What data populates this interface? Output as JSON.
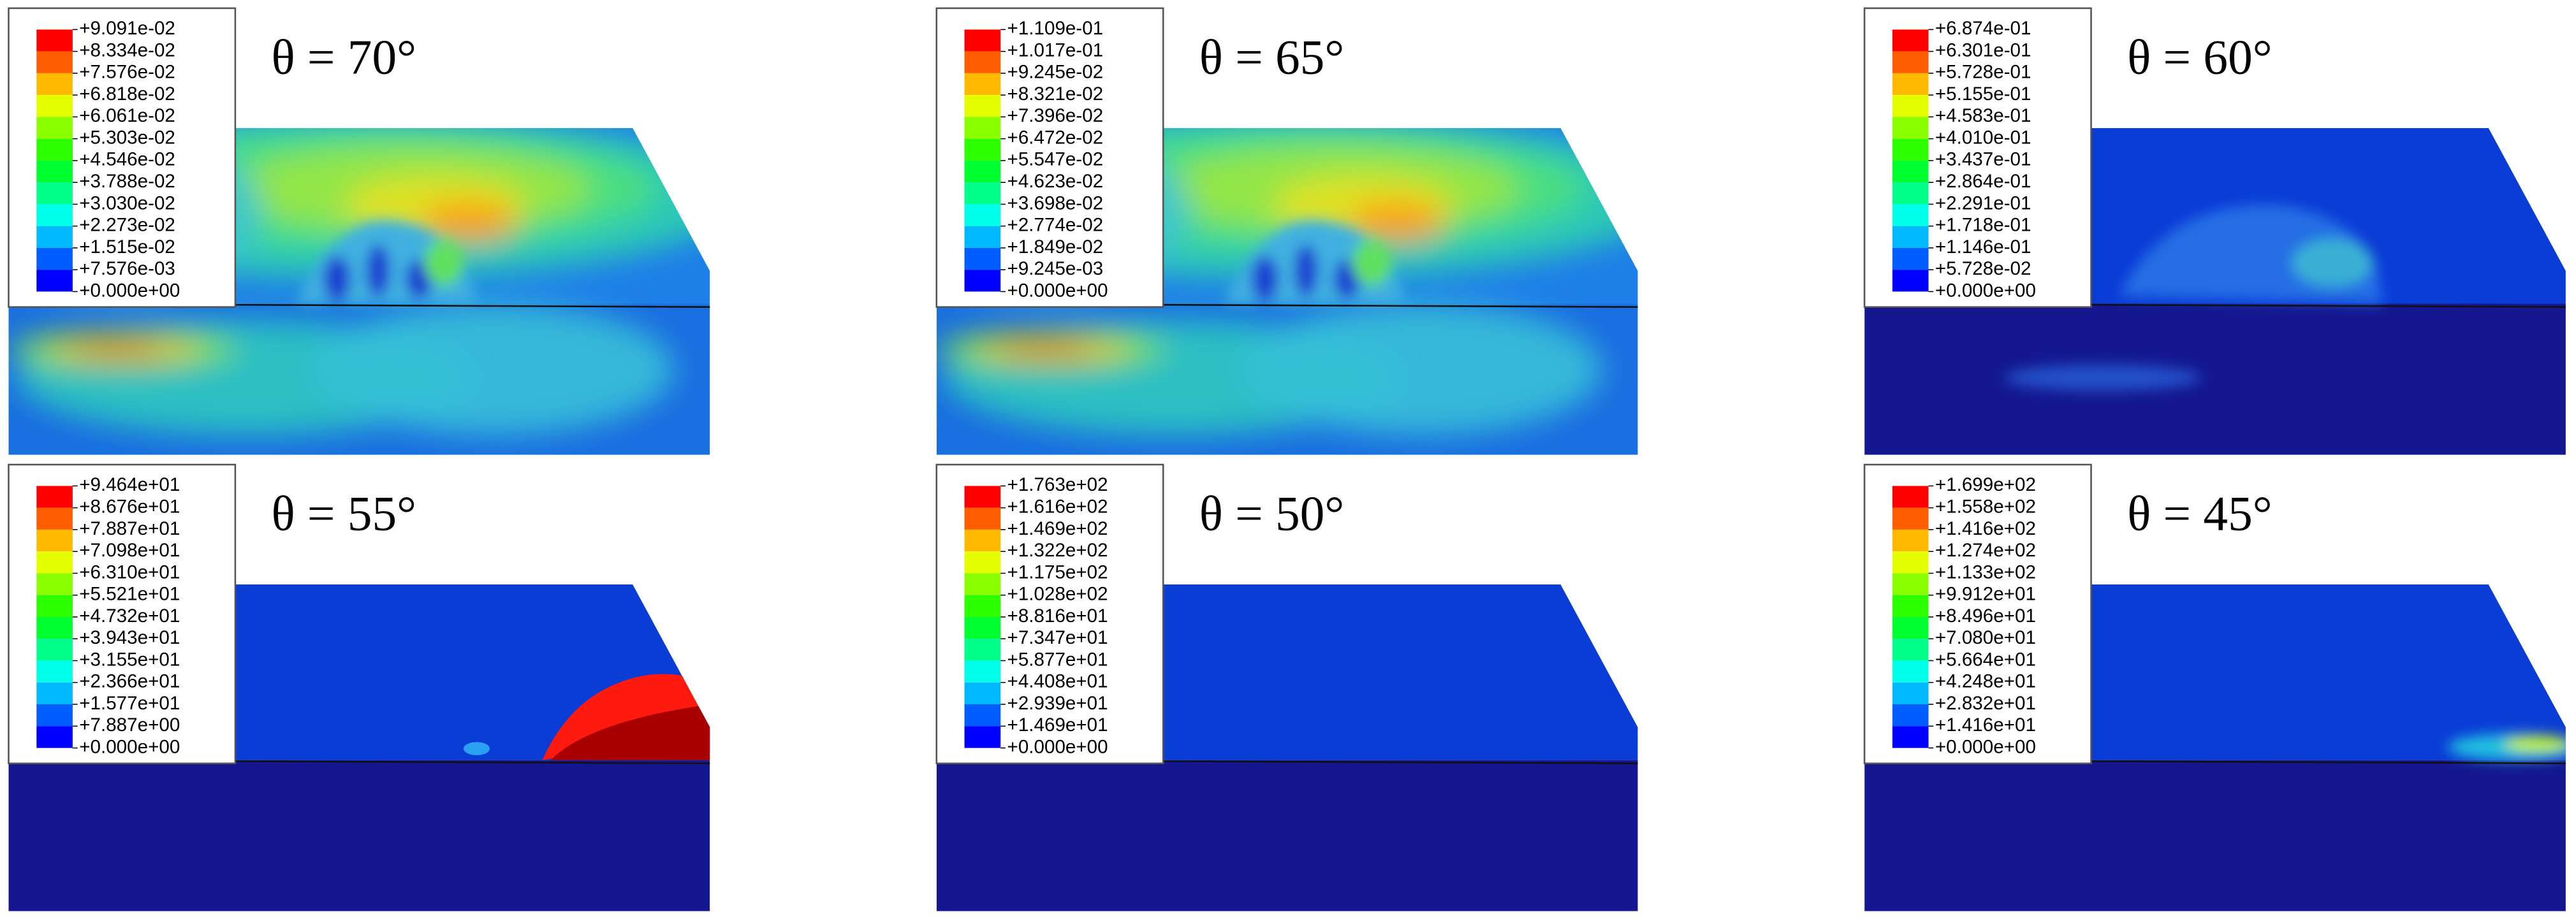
{
  "panels": [
    {
      "title": "θ = 70°",
      "legend": [
        "+9.091e-02",
        "+8.334e-02",
        "+7.576e-02",
        "+6.818e-02",
        "+6.061e-02",
        "+5.303e-02",
        "+4.546e-02",
        "+3.788e-02",
        "+3.030e-02",
        "+2.273e-02",
        "+1.515e-02",
        "+7.576e-03",
        "+0.000e+00"
      ]
    },
    {
      "title": "θ = 65°",
      "legend": [
        "+1.109e-01",
        "+1.017e-01",
        "+9.245e-02",
        "+8.321e-02",
        "+7.396e-02",
        "+6.472e-02",
        "+5.547e-02",
        "+4.623e-02",
        "+3.698e-02",
        "+2.774e-02",
        "+1.849e-02",
        "+9.245e-03",
        "+0.000e+00"
      ]
    },
    {
      "title": "θ = 60°",
      "legend": [
        "+6.874e-01",
        "+6.301e-01",
        "+5.728e-01",
        "+5.155e-01",
        "+4.583e-01",
        "+4.010e-01",
        "+3.437e-01",
        "+2.864e-01",
        "+2.291e-01",
        "+1.718e-01",
        "+1.146e-01",
        "+5.728e-02",
        "+0.000e+00"
      ]
    },
    {
      "title": "θ = 55°",
      "legend": [
        "+9.464e+01",
        "+8.676e+01",
        "+7.887e+01",
        "+7.098e+01",
        "+6.310e+01",
        "+5.521e+01",
        "+4.732e+01",
        "+3.943e+01",
        "+3.155e+01",
        "+2.366e+01",
        "+1.577e+01",
        "+7.887e+00",
        "+0.000e+00"
      ]
    },
    {
      "title": "θ = 50°",
      "legend": [
        "+1.763e+02",
        "+1.616e+02",
        "+1.469e+02",
        "+1.322e+02",
        "+1.175e+02",
        "+1.028e+02",
        "+8.816e+01",
        "+7.347e+01",
        "+5.877e+01",
        "+4.408e+01",
        "+2.939e+01",
        "+1.469e+01",
        "+0.000e+00"
      ]
    },
    {
      "title": "θ = 45°",
      "legend": [
        "+1.699e+02",
        "+1.558e+02",
        "+1.416e+02",
        "+1.274e+02",
        "+1.133e+02",
        "+9.912e+01",
        "+8.496e+01",
        "+7.080e+01",
        "+5.664e+01",
        "+4.248e+01",
        "+2.832e+01",
        "+1.416e+01",
        "+0.000e+00"
      ]
    }
  ]
}
